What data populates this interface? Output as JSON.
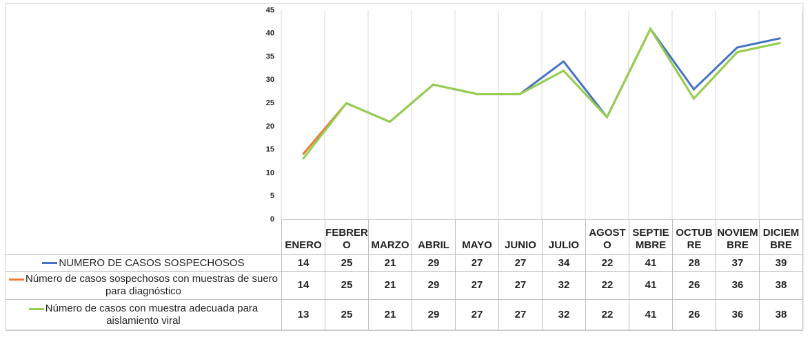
{
  "chart_data": {
    "type": "line",
    "categories": [
      "ENERO",
      "FEBRERO",
      "MARZO",
      "ABRIL",
      "MAYO",
      "JUNIO",
      "JULIO",
      "AGOSTO",
      "SEPTIEMBRE",
      "OCTUBRE",
      "NOVIEMBRE",
      "DICIEMBRE"
    ],
    "series": [
      {
        "name": "NUMERO DE CASOS SOSPECHOSOS",
        "color": "#4472c4",
        "values": [
          14,
          25,
          21,
          29,
          27,
          27,
          34,
          22,
          41,
          28,
          37,
          39
        ]
      },
      {
        "name": "Número de casos sospechosos con muestras de suero para diagnóstico",
        "color": "#ed7d31",
        "values": [
          14,
          25,
          21,
          29,
          27,
          27,
          32,
          22,
          41,
          26,
          36,
          38
        ]
      },
      {
        "name": "Número de casos con muestra adecuada para aislamiento viral",
        "color": "#92d050",
        "values": [
          13,
          25,
          21,
          29,
          27,
          27,
          32,
          22,
          41,
          26,
          36,
          38
        ]
      }
    ],
    "ylim": [
      0,
      45
    ],
    "yticks": [
      0,
      5,
      10,
      15,
      20,
      25,
      30,
      35,
      40,
      45
    ],
    "grid": true
  }
}
